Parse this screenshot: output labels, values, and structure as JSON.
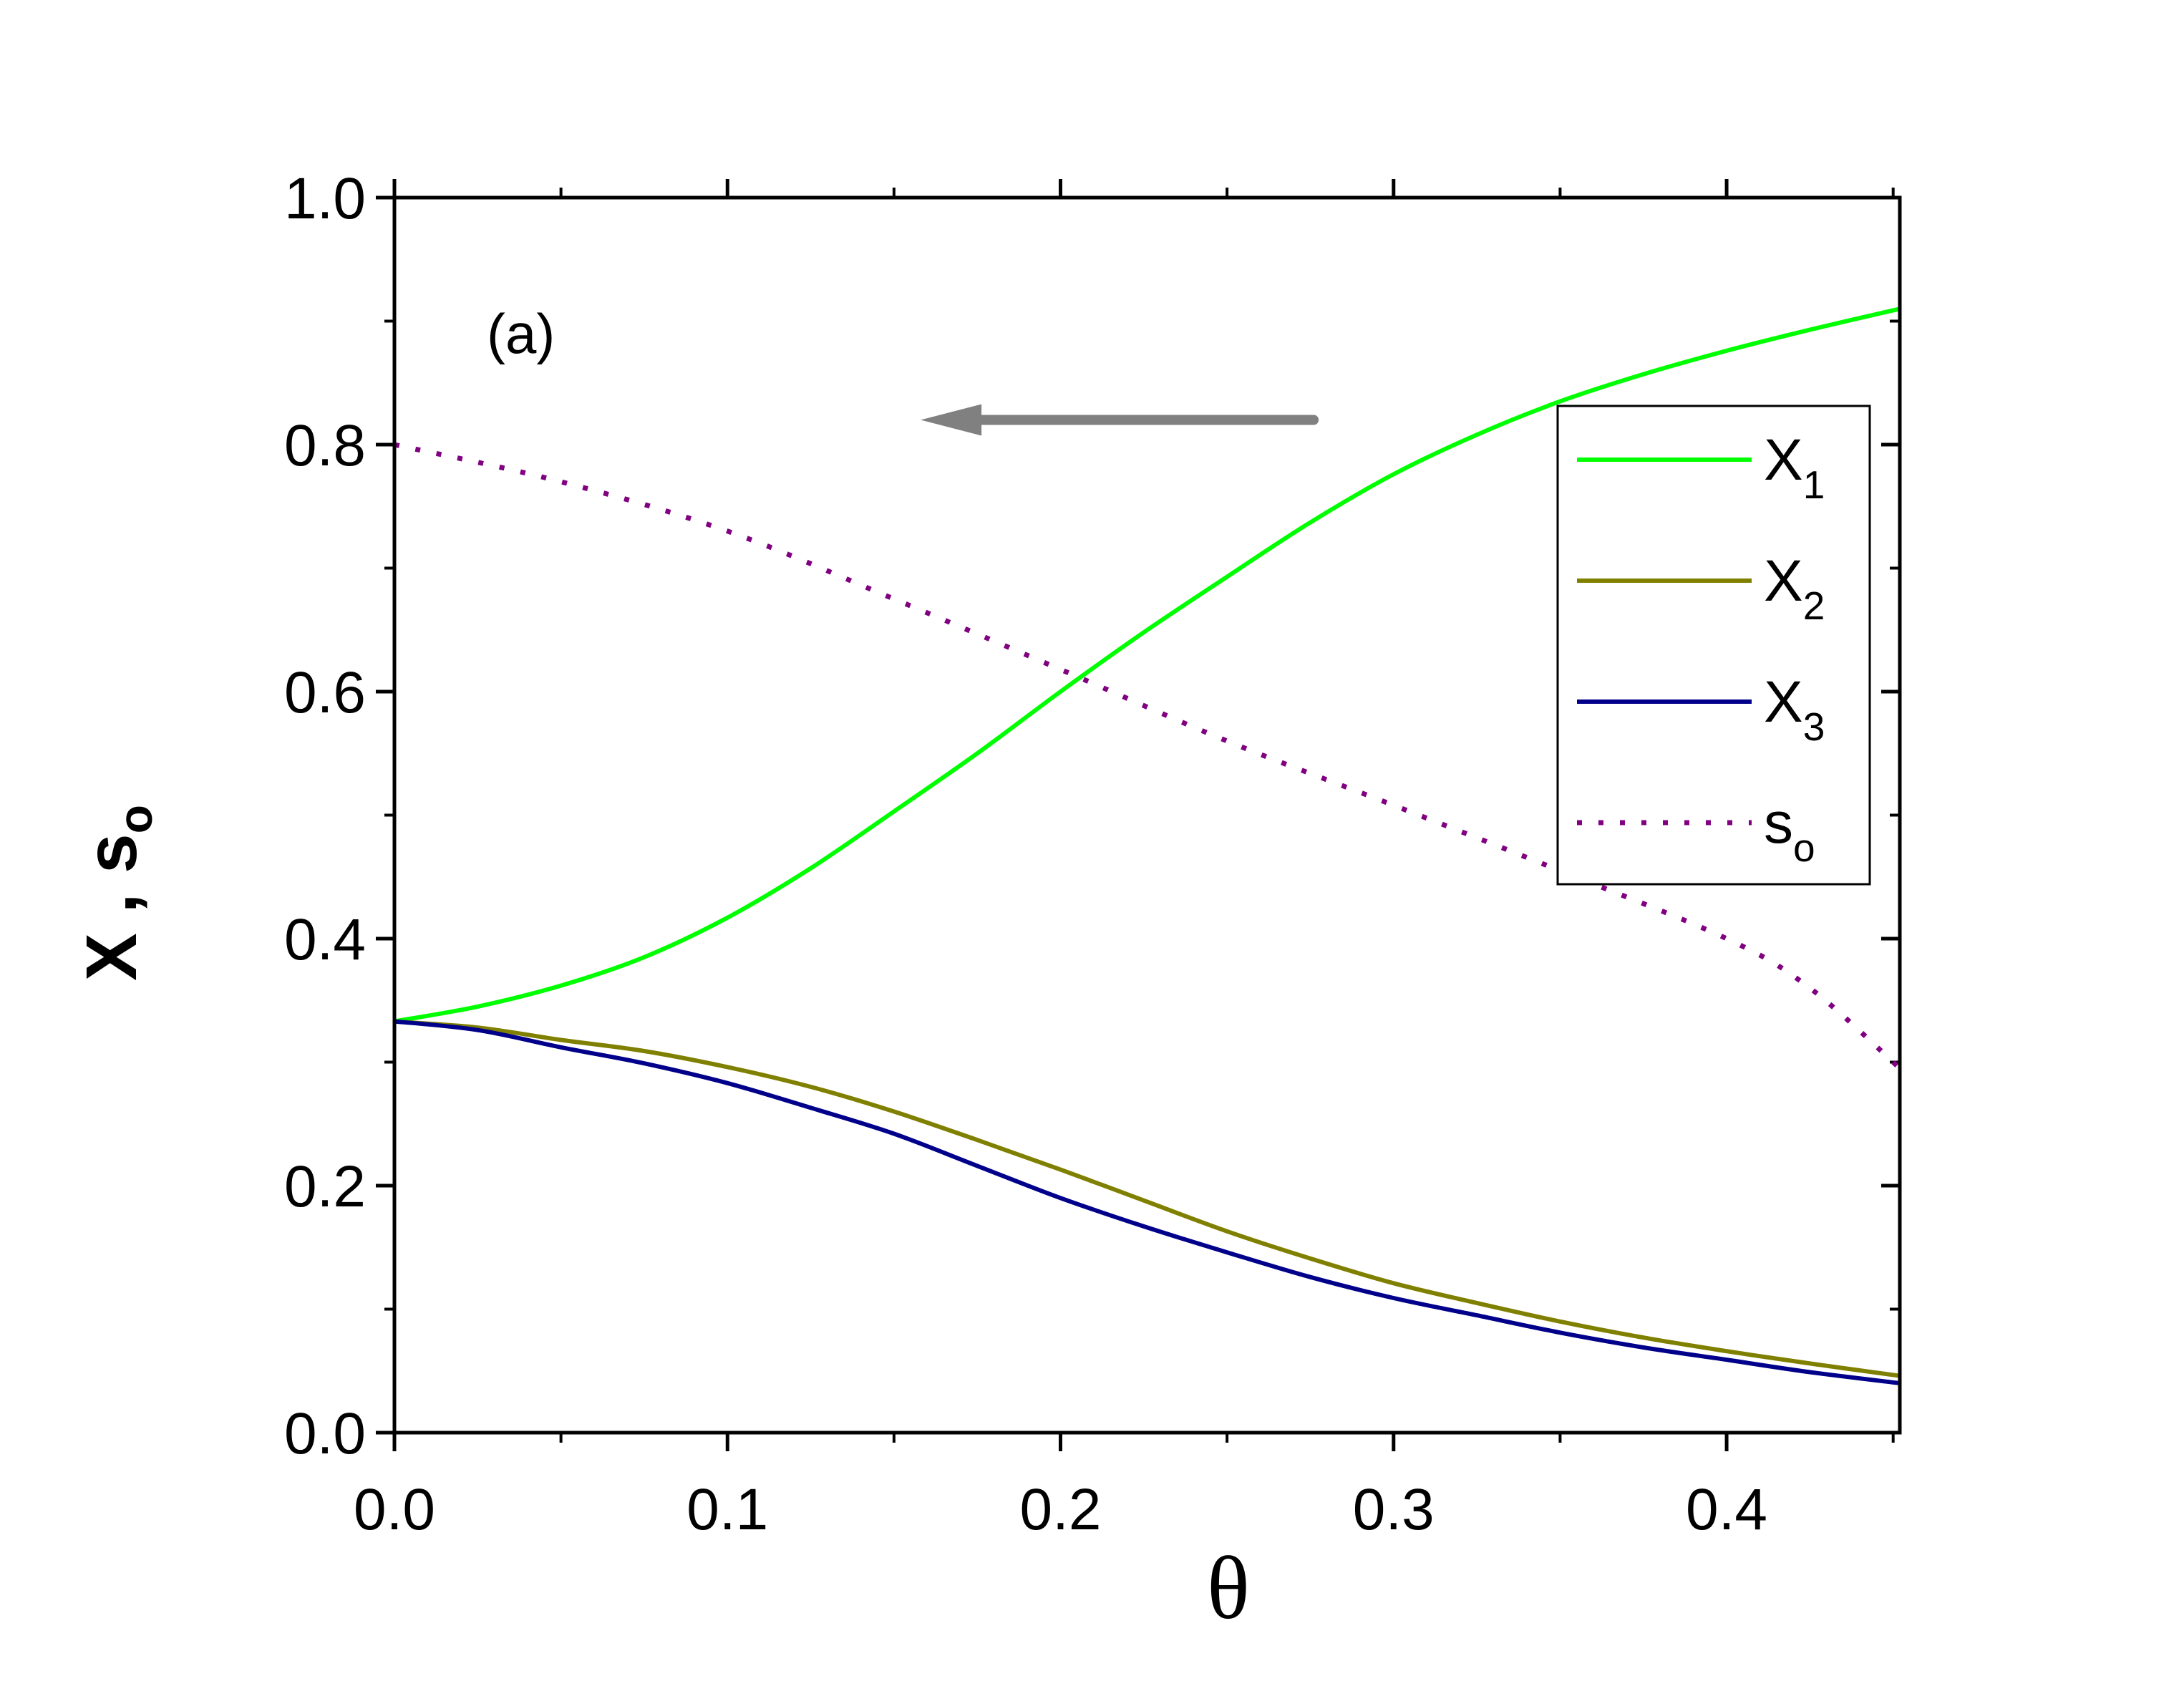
{
  "chart_data": {
    "type": "line",
    "panel_label": "(a)",
    "xlabel": "θ",
    "ylabel": {
      "main": "X , s",
      "sub": "o"
    },
    "xlim": [
      0.0,
      0.452
    ],
    "ylim": [
      0.0,
      1.0
    ],
    "xticks": [
      0.0,
      0.1,
      0.2,
      0.3,
      0.4
    ],
    "xtick_labels": [
      "0.0",
      "0.1",
      "0.2",
      "0.3",
      "0.4"
    ],
    "yticks": [
      0.0,
      0.2,
      0.4,
      0.6,
      0.8,
      1.0
    ],
    "ytick_labels": [
      "0.0",
      "0.2",
      "0.4",
      "0.6",
      "0.8",
      "1.0"
    ],
    "grid": false,
    "legend_position": "right",
    "series": [
      {
        "name": "X",
        "sub": "1",
        "color": "#00ff00",
        "style": "solid",
        "x": [
          0.0,
          0.025,
          0.05,
          0.075,
          0.1,
          0.125,
          0.15,
          0.175,
          0.2,
          0.225,
          0.25,
          0.275,
          0.3,
          0.325,
          0.35,
          0.375,
          0.4,
          0.425,
          0.452
        ],
        "y": [
          0.333,
          0.345,
          0.362,
          0.385,
          0.417,
          0.457,
          0.503,
          0.55,
          0.6,
          0.648,
          0.693,
          0.737,
          0.776,
          0.808,
          0.835,
          0.857,
          0.876,
          0.893,
          0.91
        ]
      },
      {
        "name": "X",
        "sub": "2",
        "color": "#808000",
        "style": "solid",
        "x": [
          0.0,
          0.025,
          0.05,
          0.075,
          0.1,
          0.125,
          0.15,
          0.175,
          0.2,
          0.225,
          0.25,
          0.275,
          0.3,
          0.325,
          0.35,
          0.375,
          0.4,
          0.425,
          0.452
        ],
        "y": [
          0.333,
          0.328,
          0.318,
          0.309,
          0.296,
          0.28,
          0.26,
          0.237,
          0.213,
          0.188,
          0.163,
          0.141,
          0.121,
          0.105,
          0.09,
          0.077,
          0.066,
          0.056,
          0.046
        ]
      },
      {
        "name": "X",
        "sub": "3",
        "color": "#00008b",
        "style": "solid",
        "x": [
          0.0,
          0.025,
          0.05,
          0.075,
          0.1,
          0.125,
          0.15,
          0.175,
          0.2,
          0.225,
          0.25,
          0.275,
          0.3,
          0.325,
          0.35,
          0.375,
          0.4,
          0.425,
          0.452
        ],
        "y": [
          0.333,
          0.326,
          0.312,
          0.299,
          0.283,
          0.263,
          0.242,
          0.216,
          0.19,
          0.167,
          0.146,
          0.126,
          0.109,
          0.095,
          0.081,
          0.069,
          0.059,
          0.049,
          0.04
        ]
      },
      {
        "name": "s",
        "sub": "o",
        "color": "#800080",
        "style": "dotted",
        "x": [
          0.0,
          0.05,
          0.1,
          0.15,
          0.2,
          0.25,
          0.3,
          0.35,
          0.4,
          0.425,
          0.452
        ],
        "y": [
          0.8,
          0.77,
          0.73,
          0.675,
          0.618,
          0.56,
          0.508,
          0.455,
          0.4,
          0.36,
          0.295
        ]
      }
    ],
    "annotations": [
      {
        "type": "arrow",
        "direction": "left",
        "color": "#808080",
        "x_from": 0.276,
        "x_to": 0.158,
        "y": 0.82
      }
    ]
  }
}
